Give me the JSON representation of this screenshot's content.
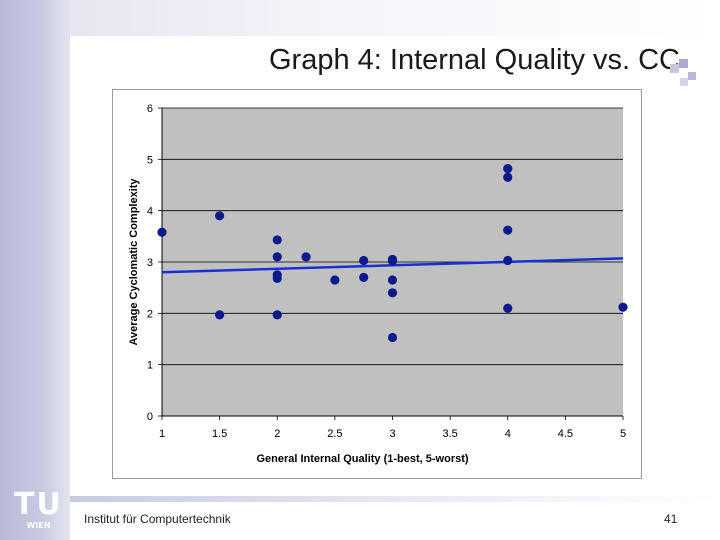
{
  "slide": {
    "title": "Graph 4: Internal Quality vs. CC",
    "footer": "Institut für Computertechnik",
    "page_number": "41",
    "logo": {
      "letters": "TU",
      "subtitle": "WIEN"
    }
  },
  "colors": {
    "plot_bg": "#c0c0c0",
    "marker": "#0d1a8c",
    "trend": "#1a2fd6",
    "accent": "#b9bad7"
  },
  "chart_data": {
    "type": "scatter",
    "title": "",
    "xlabel": "General Internal Quality (1-best, 5-worst)",
    "ylabel": "Average Cyclomatic Complexity",
    "xlim": [
      1,
      5
    ],
    "ylim": [
      0,
      6
    ],
    "xticks": [
      "1",
      "1.5",
      "2",
      "2.5",
      "3",
      "3.5",
      "4",
      "4.5",
      "5"
    ],
    "yticks": [
      "0",
      "1",
      "2",
      "3",
      "4",
      "5",
      "6"
    ],
    "grid": "horizontal",
    "points": [
      [
        1,
        3.58
      ],
      [
        1.5,
        3.9
      ],
      [
        1.5,
        1.97
      ],
      [
        2,
        3.43
      ],
      [
        2,
        3.1
      ],
      [
        2,
        2.75
      ],
      [
        2,
        2.68
      ],
      [
        2,
        1.97
      ],
      [
        2.25,
        3.1
      ],
      [
        2.5,
        2.65
      ],
      [
        2.75,
        3.03
      ],
      [
        2.75,
        2.7
      ],
      [
        3,
        3.05
      ],
      [
        3,
        3.02
      ],
      [
        3,
        2.65
      ],
      [
        3,
        2.4
      ],
      [
        3,
        1.53
      ],
      [
        4,
        4.82
      ],
      [
        4,
        4.65
      ],
      [
        4,
        3.62
      ],
      [
        4,
        3.03
      ],
      [
        4,
        2.1
      ],
      [
        5,
        2.12
      ]
    ],
    "trendline": {
      "start": [
        1,
        2.8
      ],
      "end": [
        5,
        3.07
      ]
    }
  }
}
